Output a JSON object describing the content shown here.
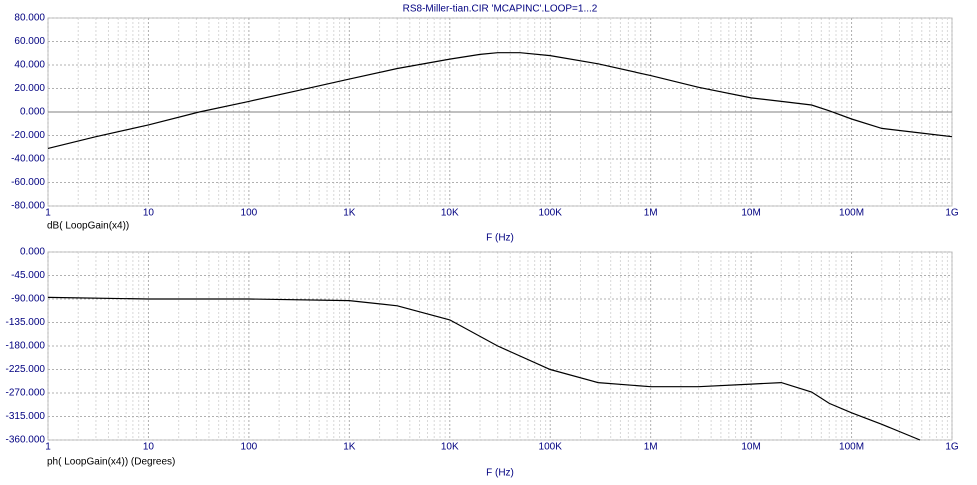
{
  "title": "RS8-Miller-tian.CIR 'MCAPINC'.LOOP=1...2",
  "chart_data": [
    {
      "type": "line",
      "log_x": true,
      "grid": true,
      "minor_grid": true,
      "zero_line": true,
      "ylabel": "dB( LoopGain(x4))",
      "xlabel": "F (Hz)",
      "xlim": [
        1,
        1000000000
      ],
      "ylim": [
        -80,
        80
      ],
      "xticks": [
        1,
        10,
        100,
        {
          "value": 1000,
          "label": "1K"
        },
        {
          "value": 10000,
          "label": "10K"
        },
        {
          "value": 100000,
          "label": "100K"
        },
        {
          "value": 1000000,
          "label": "1M"
        },
        {
          "value": 10000000,
          "label": "10M"
        },
        {
          "value": 100000000,
          "label": "100M"
        },
        {
          "value": 1000000000,
          "label": "1G"
        }
      ],
      "yticks": [
        {
          "value": 80,
          "label": "80.000"
        },
        {
          "value": 60,
          "label": "60.000"
        },
        {
          "value": 40,
          "label": "40.000"
        },
        {
          "value": 20,
          "label": "20.000"
        },
        {
          "value": 0,
          "label": "0.000"
        },
        {
          "value": -20,
          "label": "-20.000"
        },
        {
          "value": -40,
          "label": "-40.000"
        },
        {
          "value": -60,
          "label": "-60.000"
        },
        {
          "value": -80,
          "label": "-80.000"
        }
      ],
      "x": [
        1,
        3,
        10,
        32,
        100,
        300,
        1000,
        3000,
        10000,
        20000,
        30000,
        50000,
        100000,
        300000,
        1000000,
        3000000,
        10000000,
        20000000,
        40000000,
        60000000,
        100000000,
        200000000,
        500000000,
        1000000000
      ],
      "series": [
        {
          "color": "#000000",
          "values": [
            -31,
            -21,
            -11,
            0,
            9,
            18,
            28,
            37,
            45,
            49,
            50.5,
            50.5,
            48,
            41,
            31,
            21,
            12,
            9,
            6,
            1,
            -6,
            -14,
            -18,
            -21
          ]
        }
      ]
    },
    {
      "type": "line",
      "log_x": true,
      "grid": true,
      "minor_grid": true,
      "zero_line": false,
      "ylabel": "ph( LoopGain(x4)) (Degrees)",
      "xlabel": "F (Hz)",
      "xlim": [
        1,
        1000000000
      ],
      "ylim": [
        -360,
        0
      ],
      "xticks": [
        1,
        10,
        100,
        {
          "value": 1000,
          "label": "1K"
        },
        {
          "value": 10000,
          "label": "10K"
        },
        {
          "value": 100000,
          "label": "100K"
        },
        {
          "value": 1000000,
          "label": "1M"
        },
        {
          "value": 10000000,
          "label": "10M"
        },
        {
          "value": 100000000,
          "label": "100M"
        },
        {
          "value": 1000000000,
          "label": "1G"
        }
      ],
      "yticks": [
        {
          "value": 0,
          "label": "0.000"
        },
        {
          "value": -45,
          "label": "-45.000"
        },
        {
          "value": -90,
          "label": "-90.000"
        },
        {
          "value": -135,
          "label": "-135.000"
        },
        {
          "value": -180,
          "label": "-180.000"
        },
        {
          "value": -225,
          "label": "-225.000"
        },
        {
          "value": -270,
          "label": "-270.000"
        },
        {
          "value": -315,
          "label": "-315.000"
        },
        {
          "value": -360,
          "label": "-360.000"
        }
      ],
      "x": [
        1,
        10,
        100,
        1000,
        3000,
        10000,
        30000,
        100000,
        300000,
        1000000,
        3000000,
        10000000,
        20000000,
        40000000,
        60000000,
        100000000,
        200000000,
        480000000
      ],
      "series": [
        {
          "color": "#000000",
          "values": [
            -87,
            -90,
            -90,
            -93,
            -103,
            -130,
            -180,
            -225,
            -250,
            -258,
            -258,
            -253,
            -250,
            -268,
            -290,
            -308,
            -330,
            -360
          ]
        }
      ]
    }
  ]
}
